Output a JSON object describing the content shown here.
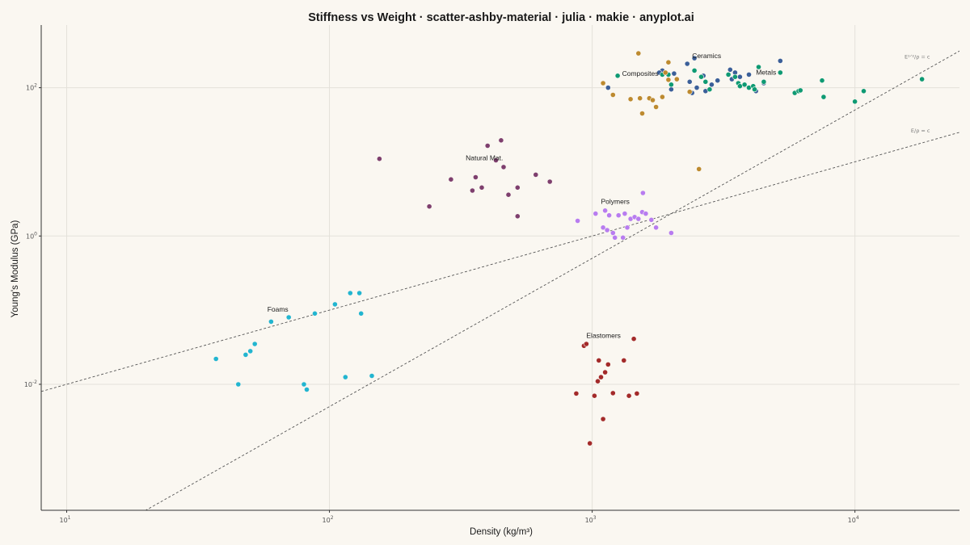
{
  "chart_data": {
    "type": "scatter",
    "title": "Stiffness vs Weight · scatter-ashby-material · julia · makie · anyplot.ai",
    "xlabel": "Density  (kg/m³)",
    "ylabel": "Young's Modulus  (GPa)",
    "xscale": "log",
    "yscale": "log",
    "xlim": [
      8,
      25000
    ],
    "ylim": [
      0.0002,
      700
    ],
    "grid": true,
    "x_ticks": [
      {
        "base": "10",
        "exp": "1"
      },
      {
        "base": "10",
        "exp": "2"
      },
      {
        "base": "10",
        "exp": "3"
      },
      {
        "base": "10",
        "exp": "4"
      }
    ],
    "y_ticks": [
      {
        "base": "10",
        "exp": "-2"
      },
      {
        "base": "10",
        "exp": "0"
      },
      {
        "base": "10",
        "exp": "2"
      }
    ],
    "guide_lines": [
      {
        "label": "E¹ᐟ²/ρ = c",
        "exponent": 2,
        "coef": 5e-07
      },
      {
        "label": "E/ρ = c",
        "exponent": 1,
        "coef": 0.001
      }
    ],
    "series": [
      {
        "name": "Metals",
        "color": "#3B5F99",
        "x": [
          1850,
          2050,
          2300,
          2450,
          2650,
          3000,
          3350,
          3400,
          3650,
          3950,
          4500,
          5200,
          1800,
          2000,
          2350,
          2500,
          2700,
          2850,
          3500,
          4200,
          1150,
          2400
        ],
        "y": [
          170,
          155,
          210,
          250,
          145,
          125,
          175,
          130,
          140,
          150,
          115,
          230,
          160,
          95,
          120,
          100,
          90,
          110,
          160,
          90,
          100,
          85
        ]
      },
      {
        "name": "Ceramics",
        "color": "#0E9A73",
        "x": [
          1250,
          1850,
          2000,
          2700,
          2800,
          3500,
          3600,
          3650,
          3800,
          3950,
          4100,
          4150,
          4300,
          4500,
          5200,
          5900,
          6100,
          6200,
          7500,
          7600,
          10000,
          10800,
          18000,
          1950,
          2450,
          2600,
          3300
        ],
        "y": [
          145,
          150,
          110,
          120,
          95,
          140,
          115,
          105,
          110,
          100,
          105,
          95,
          190,
          120,
          160,
          85,
          90,
          92,
          125,
          75,
          65,
          90,
          130,
          150,
          170,
          140,
          150
        ]
      },
      {
        "name": "Composites",
        "color": "#BD8A2F",
        "x": [
          1100,
          1200,
          1400,
          1500,
          1550,
          1650,
          1700,
          1750,
          1850,
          1950,
          2100,
          2350,
          1520,
          1950,
          2550,
          1900
        ],
        "y": [
          115,
          80,
          70,
          290,
          45,
          72,
          68,
          55,
          75,
          220,
          130,
          88,
          72,
          128,
          8,
          160
        ]
      },
      {
        "name": "Natural Mat.",
        "color": "#7E3F6E",
        "x": [
          155,
          240,
          290,
          350,
          360,
          380,
          400,
          430,
          450,
          460,
          480,
          520,
          520,
          610,
          690
        ],
        "y": [
          11,
          2.5,
          5.8,
          4.1,
          6.2,
          4.5,
          16.5,
          10.5,
          19.5,
          8.5,
          3.6,
          4.5,
          1.85,
          6.7,
          5.4
        ]
      },
      {
        "name": "Polymers",
        "color": "#B87CF0",
        "x": [
          880,
          1030,
          1100,
          1120,
          1140,
          1160,
          1200,
          1220,
          1260,
          1310,
          1330,
          1360,
          1400,
          1450,
          1500,
          1550,
          1560,
          1600,
          1680,
          1750,
          2000
        ],
        "y": [
          1.6,
          2.0,
          1.3,
          2.2,
          1.2,
          1.9,
          1.1,
          0.95,
          1.9,
          0.95,
          2.0,
          1.3,
          1.7,
          1.8,
          1.7,
          2.1,
          3.8,
          2.0,
          1.65,
          1.3,
          1.1
        ]
      },
      {
        "name": "Foams",
        "color": "#22B5D0",
        "x": [
          37,
          45,
          48,
          50,
          52,
          60,
          70,
          80,
          82,
          88,
          105,
          115,
          120,
          130,
          132,
          145
        ],
        "y": [
          0.022,
          0.01,
          0.025,
          0.028,
          0.035,
          0.07,
          0.08,
          0.01,
          0.0085,
          0.09,
          0.12,
          0.0125,
          0.17,
          0.17,
          0.09,
          0.013
        ]
      },
      {
        "name": "Elastomers",
        "color": "#A32A2A",
        "x": [
          870,
          930,
          950,
          980,
          1020,
          1050,
          1060,
          1080,
          1100,
          1120,
          1150,
          1200,
          1320,
          1380,
          1440,
          1480
        ],
        "y": [
          0.0075,
          0.033,
          0.035,
          0.0016,
          0.007,
          0.011,
          0.021,
          0.0125,
          0.0034,
          0.0145,
          0.0185,
          0.0076,
          0.021,
          0.007,
          0.041,
          0.0075
        ]
      }
    ]
  }
}
